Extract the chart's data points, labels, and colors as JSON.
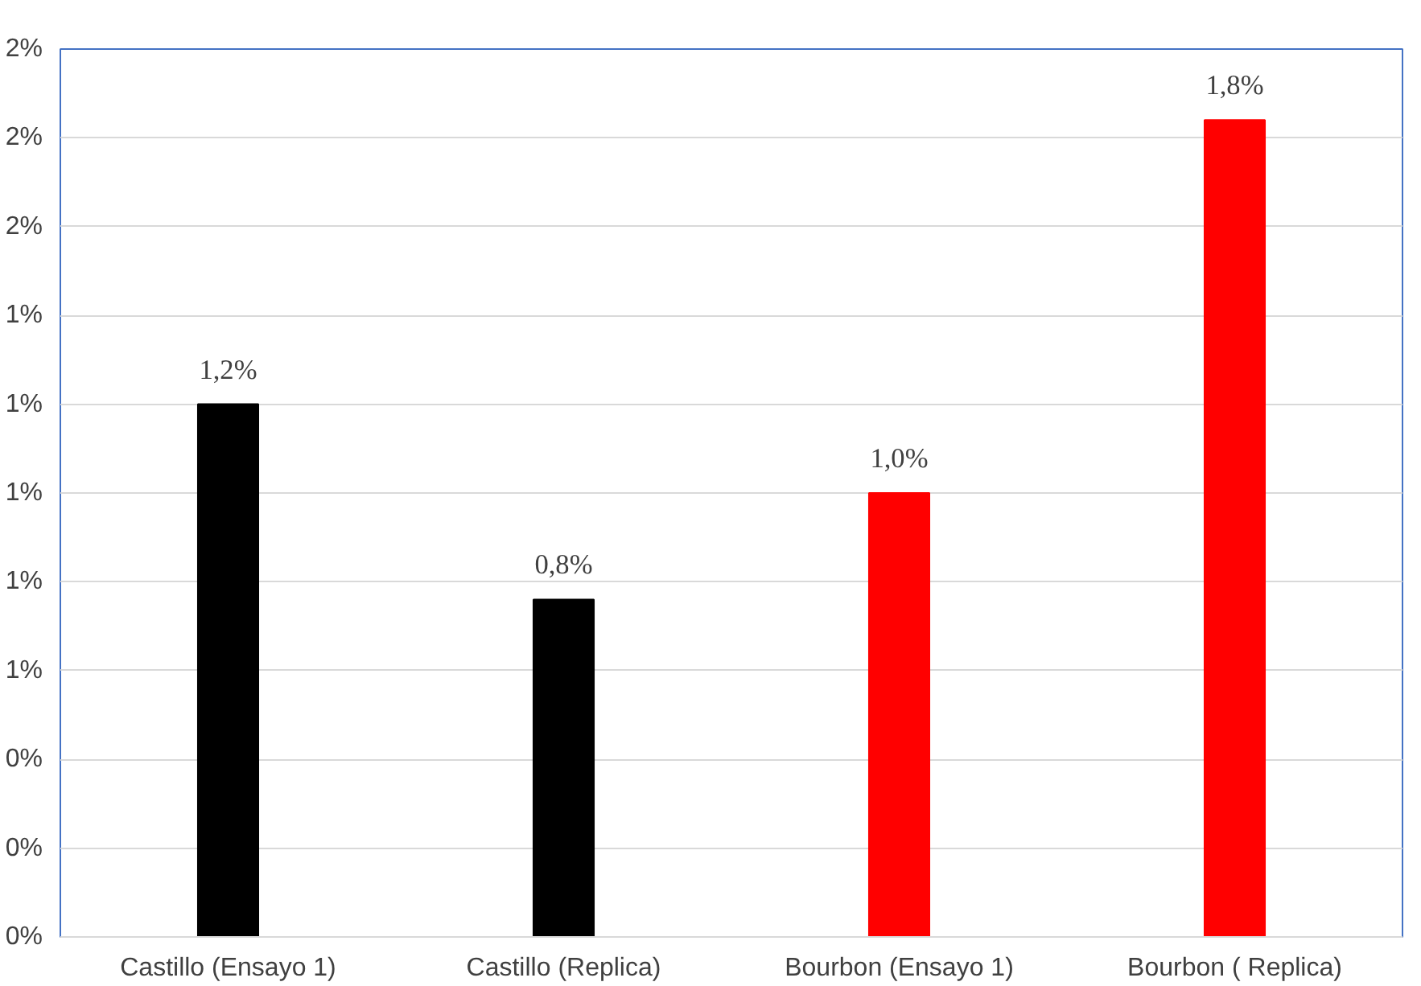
{
  "chart_data": {
    "type": "bar",
    "categories": [
      "Castillo (Ensayo 1)",
      "Castillo (Replica)",
      "Bourbon (Ensayo 1)",
      "Bourbon ( Replica)"
    ],
    "values": [
      1.2,
      0.76,
      1.0,
      1.84
    ],
    "colors": [
      "#000000",
      "#000000",
      "#ff0000",
      "#ff0000"
    ],
    "value_labels": [
      "1,2%",
      "0,8%",
      "1,0%",
      "1,8%"
    ],
    "ylim": [
      0,
      2.0
    ],
    "yticks": [
      {
        "value": 0,
        "label": "0%"
      },
      {
        "value": 0.2,
        "label": "0%"
      },
      {
        "value": 0.4,
        "label": "0%"
      },
      {
        "value": 0.6,
        "label": "1%"
      },
      {
        "value": 0.8,
        "label": "1%"
      },
      {
        "value": 1.0,
        "label": "1%"
      },
      {
        "value": 1.2,
        "label": "1%"
      },
      {
        "value": 1.4,
        "label": "1%"
      },
      {
        "value": 1.6,
        "label": "2%"
      },
      {
        "value": 1.8,
        "label": "2%"
      },
      {
        "value": 2.0,
        "label": "2%"
      }
    ],
    "grid": "y"
  }
}
